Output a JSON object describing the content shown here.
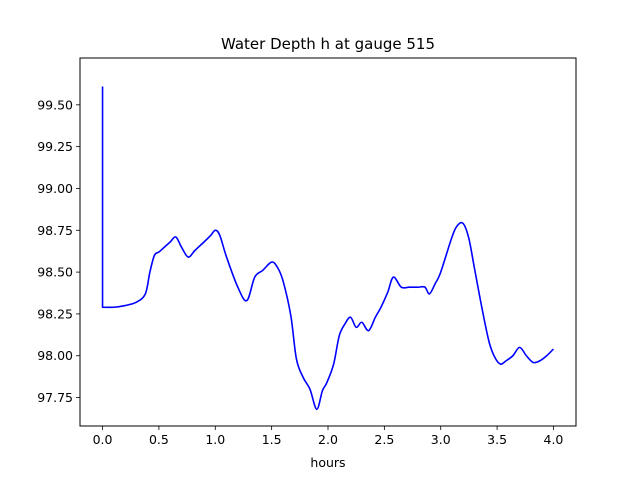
{
  "chart_data": {
    "type": "line",
    "title": "Water Depth h at gauge 515",
    "xlabel": "hours",
    "ylabel": "",
    "xlim": [
      -0.2,
      4.2
    ],
    "ylim": [
      97.58,
      99.78
    ],
    "grid": false,
    "legend": "none",
    "x_ticks": [
      0.0,
      0.5,
      1.0,
      1.5,
      2.0,
      2.5,
      3.0,
      3.5,
      4.0
    ],
    "x_tick_labels": [
      "0.0",
      "0.5",
      "1.0",
      "1.5",
      "2.0",
      "2.5",
      "3.0",
      "3.5",
      "4.0"
    ],
    "y_ticks": [
      97.75,
      98.0,
      98.25,
      98.5,
      98.75,
      99.0,
      99.25,
      99.5
    ],
    "y_tick_labels": [
      "97.75",
      "98.00",
      "98.25",
      "98.50",
      "98.75",
      "99.00",
      "99.25",
      "99.50"
    ],
    "series": [
      {
        "color": "#0000ff",
        "x": [
          0.0,
          0.0,
          0.01,
          0.1,
          0.2,
          0.3,
          0.38,
          0.42,
          0.46,
          0.5,
          0.55,
          0.6,
          0.65,
          0.7,
          0.76,
          0.82,
          0.9,
          0.96,
          1.0,
          1.04,
          1.1,
          1.2,
          1.28,
          1.35,
          1.42,
          1.5,
          1.55,
          1.6,
          1.67,
          1.72,
          1.78,
          1.84,
          1.9,
          1.95,
          1.99,
          2.05,
          2.1,
          2.15,
          2.2,
          2.25,
          2.3,
          2.36,
          2.42,
          2.47,
          2.53,
          2.58,
          2.65,
          2.72,
          2.8,
          2.86,
          2.9,
          2.95,
          3.0,
          3.1,
          3.15,
          3.2,
          3.25,
          3.3,
          3.37,
          3.43,
          3.48,
          3.53,
          3.58,
          3.64,
          3.7,
          3.76,
          3.82,
          3.88,
          3.94,
          4.0
        ],
        "values": [
          99.61,
          98.29,
          98.29,
          98.29,
          98.3,
          98.32,
          98.37,
          98.5,
          98.6,
          98.62,
          98.65,
          98.68,
          98.71,
          98.65,
          98.59,
          98.63,
          98.68,
          98.72,
          98.75,
          98.72,
          98.59,
          98.41,
          98.33,
          98.47,
          98.51,
          98.56,
          98.53,
          98.45,
          98.24,
          97.98,
          97.87,
          97.8,
          97.68,
          97.79,
          97.84,
          97.95,
          98.12,
          98.19,
          98.23,
          98.17,
          98.2,
          98.15,
          98.23,
          98.29,
          98.38,
          98.47,
          98.41,
          98.41,
          98.41,
          98.41,
          98.37,
          98.43,
          98.5,
          98.71,
          98.78,
          98.79,
          98.7,
          98.52,
          98.27,
          98.08,
          97.99,
          97.95,
          97.97,
          98.0,
          98.05,
          98.0,
          97.96,
          97.97,
          98.0,
          98.04
        ]
      }
    ]
  }
}
